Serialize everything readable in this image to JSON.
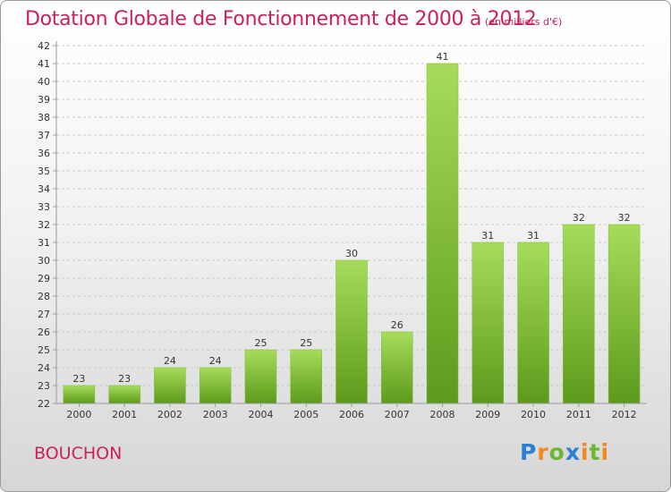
{
  "title": "Dotation Globale de Fonctionnement de 2000 à 2012",
  "subtitle": "(en milliers d'€)",
  "commune": "BOUCHON",
  "brand": {
    "letters": [
      "P",
      "r",
      "o",
      "x",
      "i",
      "t",
      "i"
    ],
    "colors": [
      "#2a7fd6",
      "#f08a1c",
      "#6cb82e",
      "#2a7fd6",
      "#f08a1c",
      "#6cb82e",
      "#f08a1c"
    ]
  },
  "colors": {
    "bar_top": "#a6dc5a",
    "bar_bottom": "#5d9a1b",
    "axis": "#9a9a9a",
    "grid": "#c8c8c8"
  },
  "chart_data": {
    "type": "bar",
    "title": "Dotation Globale de Fonctionnement de 2000 à 2012",
    "subtitle": "(en milliers d'€)",
    "categories": [
      "2000",
      "2001",
      "2002",
      "2003",
      "2004",
      "2005",
      "2006",
      "2007",
      "2008",
      "2009",
      "2010",
      "2011",
      "2012"
    ],
    "values": [
      23,
      23,
      24,
      24,
      25,
      25,
      30,
      26,
      41,
      31,
      31,
      32,
      32
    ],
    "ylim": [
      22,
      42
    ],
    "ytick_step": 1,
    "grid": "horizontal-dashed",
    "legend": "none"
  }
}
